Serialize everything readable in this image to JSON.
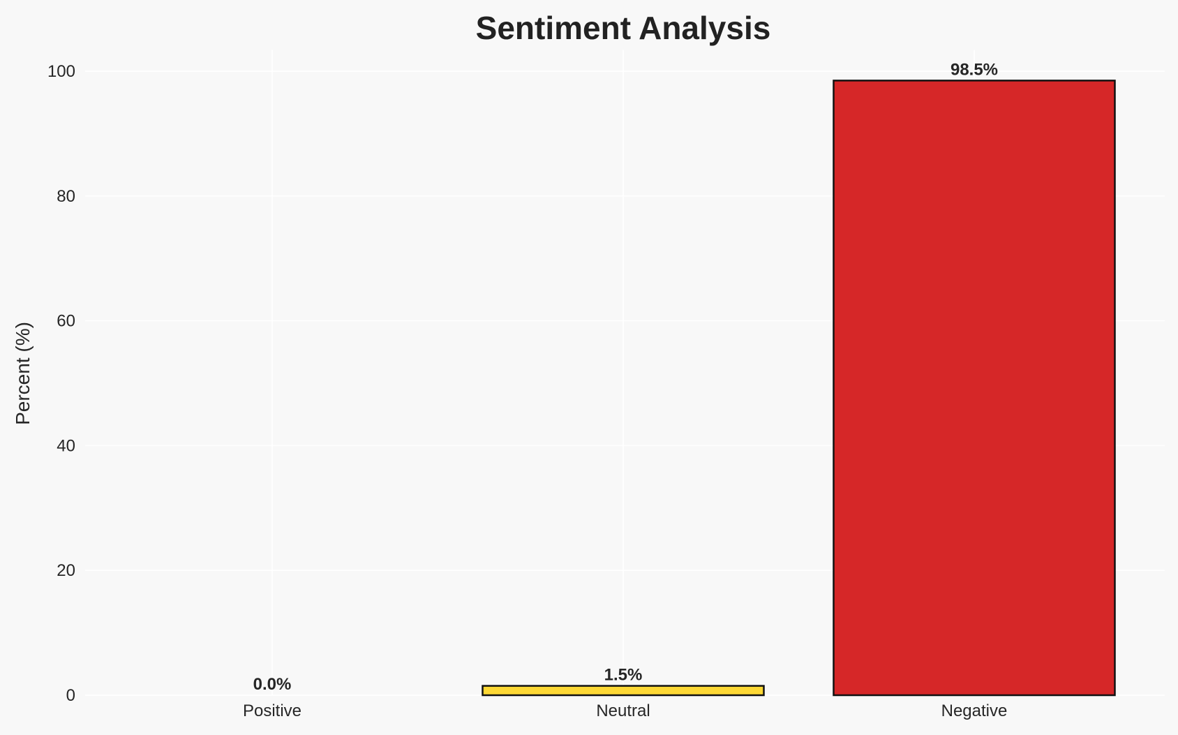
{
  "chart_data": {
    "type": "bar",
    "title": "Sentiment Analysis",
    "xlabel": "",
    "ylabel": "Percent (%)",
    "categories": [
      "Positive",
      "Neutral",
      "Negative"
    ],
    "values": [
      0.0,
      1.5,
      98.5
    ],
    "data_labels": [
      "0.0%",
      "1.5%",
      "98.5%"
    ],
    "colors": [
      "#2ca02c",
      "#fdd835",
      "#d62728"
    ],
    "edge_color": "#111111",
    "ylim": [
      0,
      103.4
    ],
    "yticks": [
      0,
      20,
      40,
      60,
      80,
      100
    ],
    "grid": true,
    "background": "#f8f8f8"
  }
}
